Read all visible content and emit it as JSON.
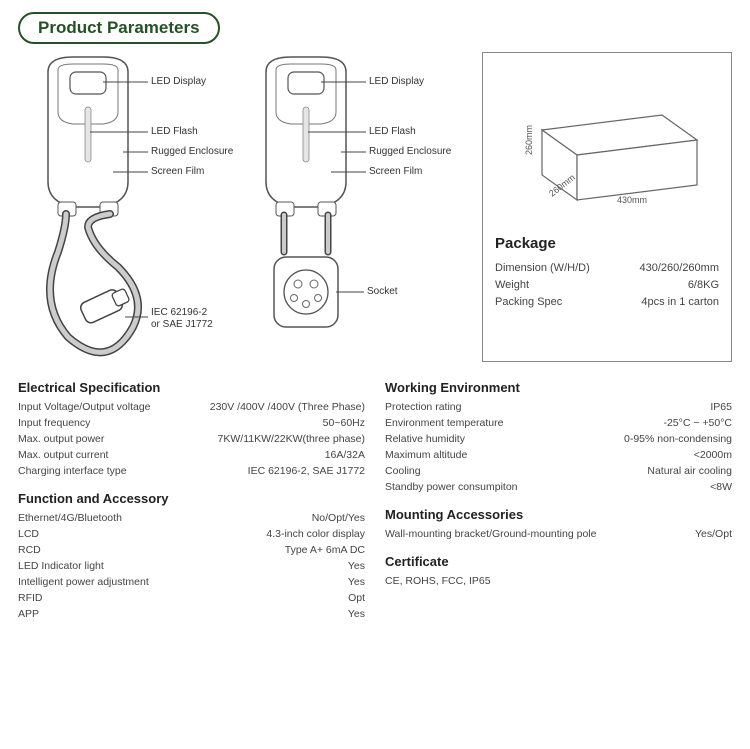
{
  "title": "Product Parameters",
  "callouts": {
    "led_display": "LED Display",
    "led_flash": "LED Flash",
    "rugged_enclosure": "Rugged Enclosure",
    "screen_film": "Screen Film",
    "socket": "Socket",
    "connector": "IEC 62196-2\nor SAE J1772"
  },
  "package": {
    "title": "Package",
    "box_dims": {
      "w": "430mm",
      "d": "260mm",
      "h": "260mm"
    },
    "rows": [
      {
        "label": "Dimension (W/H/D)",
        "value": "430/260/260mm"
      },
      {
        "label": "Weight",
        "value": "6/8KG"
      },
      {
        "label": "Packing Spec",
        "value": "4pcs in 1 carton"
      }
    ]
  },
  "sections": {
    "left": [
      {
        "title": "Electrical Specification",
        "rows": [
          {
            "label": "Input Voltage/Output voltage",
            "value": "230V /400V /400V (Three Phase)"
          },
          {
            "label": "Input frequency",
            "value": "50~60Hz"
          },
          {
            "label": "Max. output power",
            "value": "7KW/11KW/22KW(three phase)"
          },
          {
            "label": "Max. output current",
            "value": "16A/32A"
          },
          {
            "label": "Charging interface type",
            "value": "IEC 62196-2, SAE J1772"
          }
        ]
      },
      {
        "title": "Function and Accessory",
        "rows": [
          {
            "label": "Ethernet/4G/Bluetooth",
            "value": "No/Opt/Yes"
          },
          {
            "label": "LCD",
            "value": "4.3-inch color display"
          },
          {
            "label": "RCD",
            "value": "Type A+ 6mA DC"
          },
          {
            "label": "LED Indicator light",
            "value": "Yes"
          },
          {
            "label": "Intelligent power adjustment",
            "value": "Yes"
          },
          {
            "label": "RFID",
            "value": "Opt"
          },
          {
            "label": "APP",
            "value": "Yes"
          }
        ]
      }
    ],
    "right": [
      {
        "title": "Working Environment",
        "rows": [
          {
            "label": "Protection rating",
            "value": "IP65"
          },
          {
            "label": "Environment temperature",
            "value": "-25°C ~ +50°C"
          },
          {
            "label": "Relative humidity",
            "value": "0-95% non-condensing"
          },
          {
            "label": "Maximum altitude",
            "value": "<2000m"
          },
          {
            "label": "Cooling",
            "value": "Natural air cooling"
          },
          {
            "label": "Standby power consumpiton",
            "value": "<8W"
          }
        ]
      },
      {
        "title": "Mounting Accessories",
        "rows": [
          {
            "label": "Wall-mounting bracket/Ground-mounting pole",
            "value": "Yes/Opt"
          }
        ]
      },
      {
        "title": "Certificate",
        "rows": [
          {
            "label": "CE, ROHS, FCC, IP65",
            "value": ""
          }
        ]
      }
    ]
  },
  "colors": {
    "title_border": "#285028",
    "title_text": "#285028",
    "line": "#444444",
    "text": "#333333",
    "box_border": "#888888"
  }
}
